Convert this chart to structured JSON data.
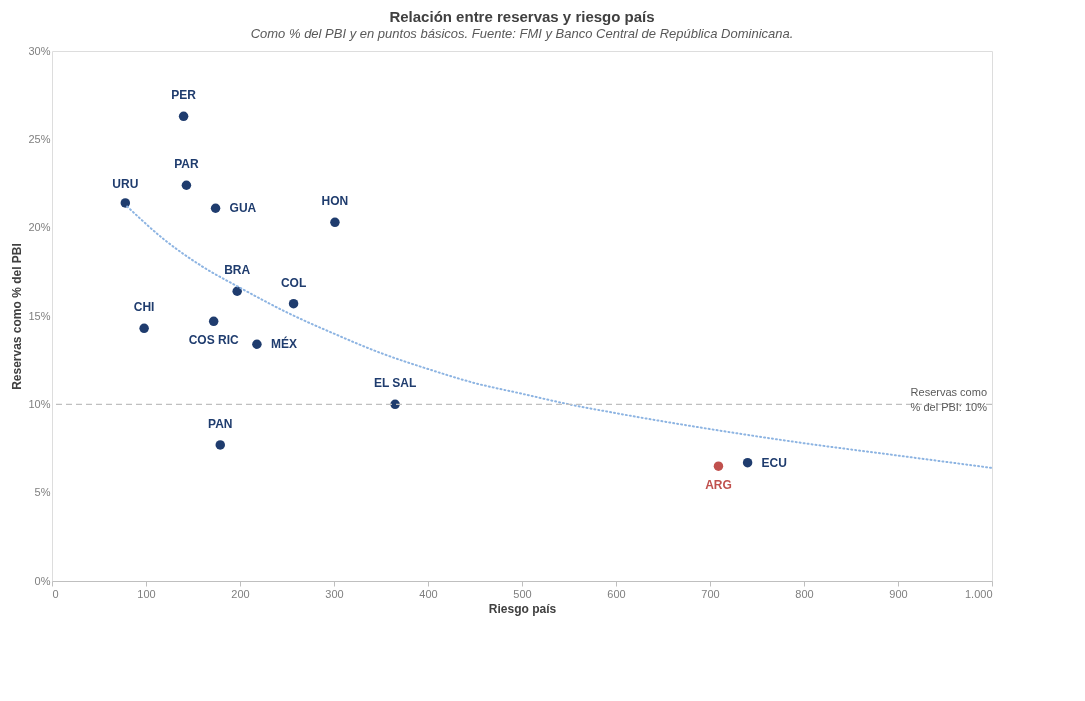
{
  "chart_data": {
    "type": "scatter",
    "title": "Relación entre reservas y riesgo país",
    "subtitle": "Como % del PBI y en puntos básicos. Fuente: FMI y Banco Central de República Dominicana.",
    "xlabel": "Riesgo país",
    "ylabel": "Reservas como % del PBI",
    "xlim": [
      0,
      1000
    ],
    "xticks": [
      0,
      100,
      200,
      300,
      400,
      500,
      600,
      700,
      800,
      900,
      {
        "value": 1000,
        "label": "1.000"
      }
    ],
    "ylim": [
      0,
      30
    ],
    "yticks": [
      {
        "value": 0,
        "label": "0%"
      },
      {
        "value": 5,
        "label": "5%"
      },
      {
        "value": 10,
        "label": "10%"
      },
      {
        "value": 15,
        "label": "15%"
      },
      {
        "value": 20,
        "label": "20%"
      },
      {
        "value": 25,
        "label": "25%"
      },
      {
        "value": 30,
        "label": "30%"
      }
    ],
    "grid": false,
    "marker": "circle",
    "series": [
      {
        "color": "#1f3c6e",
        "x": [
          140,
          143,
          78,
          174,
          301,
          197,
          257,
          98,
          172,
          218,
          365,
          179,
          740
        ],
        "values": [
          26.3,
          22.4,
          21.4,
          21.1,
          20.3,
          16.4,
          15.7,
          14.3,
          14.7,
          13.4,
          10.0,
          7.7,
          6.7
        ]
      },
      {
        "color": "#c0504d",
        "x": [
          709
        ],
        "values": [
          6.5
        ]
      },
      {
        "type": "line",
        "line_style": "dotted",
        "marker": "none",
        "color": "#8db4e2",
        "x": [
          80,
          120,
          160,
          200,
          250,
          300,
          350,
          400,
          450,
          500,
          550,
          600,
          700,
          800,
          900,
          1000
        ],
        "values": [
          21.2,
          19.3,
          17.8,
          16.6,
          15.2,
          14.0,
          12.9,
          12.0,
          11.2,
          10.6,
          10.0,
          9.5,
          8.6,
          7.8,
          7.1,
          6.4
        ]
      }
    ],
    "ref_lines": [
      {
        "axis": "y",
        "value": 10,
        "label": "Reservas como % del PBI: 10%",
        "color": "#bfbfbf",
        "line_style": "dashed"
      }
    ],
    "annotations": [
      {
        "text": "PER",
        "x": 140,
        "y": 26.3
      },
      {
        "text": "PAR",
        "x": 143,
        "y": 22.4
      },
      {
        "text": "URU",
        "x": 78,
        "y": 21.4
      },
      {
        "text": "GUA",
        "x": 174,
        "y": 21.1
      },
      {
        "text": "HON",
        "x": 301,
        "y": 20.3
      },
      {
        "text": "BRA",
        "x": 197,
        "y": 16.4
      },
      {
        "text": "COL",
        "x": 257,
        "y": 15.7
      },
      {
        "text": "CHI",
        "x": 98,
        "y": 14.3
      },
      {
        "text": "COS RIC",
        "x": 172,
        "y": 14.7
      },
      {
        "text": "MÉX",
        "x": 218,
        "y": 13.4
      },
      {
        "text": "EL SAL",
        "x": 365,
        "y": 10.0
      },
      {
        "text": "PAN",
        "x": 179,
        "y": 7.7
      },
      {
        "text": "ECU",
        "x": 740,
        "y": 6.7
      },
      {
        "text": "ARG",
        "x": 709,
        "y": 6.5
      }
    ]
  }
}
